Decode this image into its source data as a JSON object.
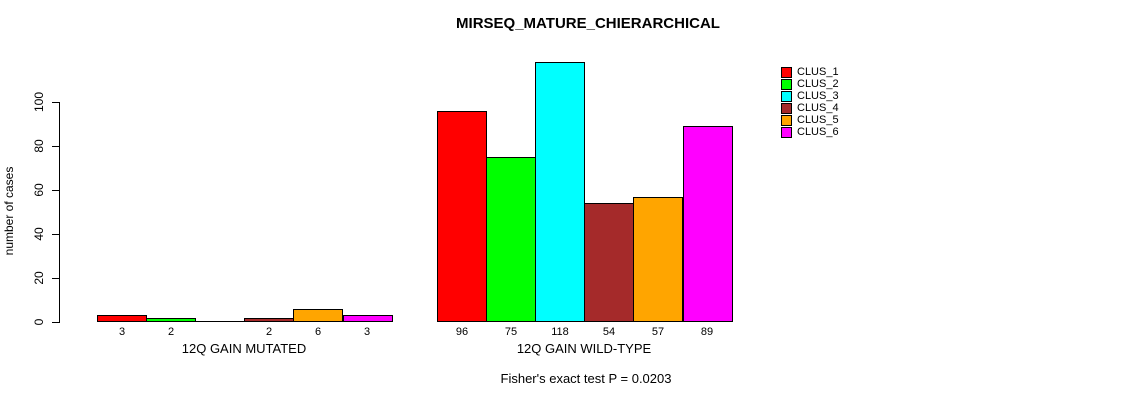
{
  "chart_data": {
    "type": "bar",
    "title": "MIRSEQ_MATURE_CHIERARCHICAL",
    "ylabel": "number of cases",
    "ylim": [
      0,
      100
    ],
    "yticks": [
      0,
      20,
      40,
      60,
      80,
      100
    ],
    "grid": false,
    "legend_position": "right",
    "categories": [
      "12Q GAIN MUTATED",
      "12Q GAIN WILD-TYPE"
    ],
    "series": [
      {
        "name": "CLUS_1",
        "color": "#FF0000",
        "values": [
          3,
          96
        ]
      },
      {
        "name": "CLUS_2",
        "color": "#00FF00",
        "values": [
          2,
          75
        ]
      },
      {
        "name": "CLUS_3",
        "color": "#00FFFF",
        "values": [
          0,
          118
        ]
      },
      {
        "name": "CLUS_4",
        "color": "#A52A2A",
        "values": [
          2,
          54
        ]
      },
      {
        "name": "CLUS_5",
        "color": "#FFA500",
        "values": [
          6,
          57
        ]
      },
      {
        "name": "CLUS_6",
        "color": "#FF00FF",
        "values": [
          3,
          89
        ]
      }
    ],
    "bar_value_labels": [
      [
        "3",
        "2",
        "",
        "2",
        "6",
        "3"
      ],
      [
        "96",
        "75",
        "118",
        "54",
        "57",
        "89"
      ]
    ],
    "footnote": "Fisher's exact test P = 0.0203",
    "axis_color": "#000000",
    "text_color": "#000000",
    "background_color": "#FFFFFF"
  }
}
